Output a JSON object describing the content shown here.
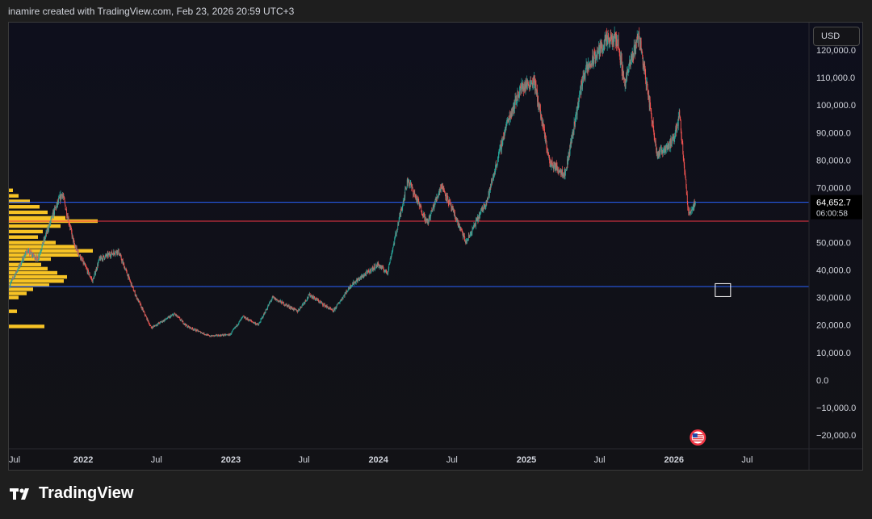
{
  "header": {
    "attribution": "inamire created with TradingView.com, Feb 23, 2026 20:59 UTC+3"
  },
  "toolbar": {
    "currency": "USD"
  },
  "footer": {
    "brand": "TradingView"
  },
  "colors": {
    "up": "#26a69a",
    "down": "#ef5350",
    "line_blue": "#2962ff",
    "line_red": "#f23645",
    "volume_profile": "#f7c325",
    "price_label_bg": "#000000",
    "axis_text": "#d1d4dc"
  },
  "chart_data": {
    "type": "candlestick",
    "series_name": "",
    "y_axis": {
      "range": [
        -25000,
        130000
      ],
      "ticks": [
        120000,
        110000,
        100000,
        90000,
        80000,
        70000,
        50000,
        40000,
        30000,
        20000,
        10000,
        0,
        -10000,
        -20000
      ],
      "tick_labels": [
        "120,000.0",
        "110,000.0",
        "100,000.0",
        "90,000.0",
        "80,000.0",
        "70,000.0",
        "50,000.0",
        "40,000.0",
        "30,000.0",
        "20,000.0",
        "10,000.0",
        "0.0",
        "−10,000.0",
        "−20,000.0"
      ]
    },
    "x_axis": {
      "range": [
        "2021-07-01",
        "2026-12-01"
      ],
      "ticks": [
        {
          "date": "2021-07-01",
          "label": "Jul",
          "bold": false
        },
        {
          "date": "2022-01-01",
          "label": "2022",
          "bold": true
        },
        {
          "date": "2022-07-01",
          "label": "Jul",
          "bold": false
        },
        {
          "date": "2023-01-01",
          "label": "2023",
          "bold": true
        },
        {
          "date": "2023-07-01",
          "label": "Jul",
          "bold": false
        },
        {
          "date": "2024-01-01",
          "label": "2024",
          "bold": true
        },
        {
          "date": "2024-07-01",
          "label": "Jul",
          "bold": false
        },
        {
          "date": "2025-01-01",
          "label": "2025",
          "bold": true
        },
        {
          "date": "2025-07-01",
          "label": "Jul",
          "bold": false
        },
        {
          "date": "2026-01-01",
          "label": "2026",
          "bold": true
        },
        {
          "date": "2026-07-01",
          "label": "Jul",
          "bold": false
        }
      ]
    },
    "price_path": [
      [
        "2021-07-01",
        34000
      ],
      [
        "2021-08-15",
        47000
      ],
      [
        "2021-09-10",
        44000
      ],
      [
        "2021-10-20",
        61000
      ],
      [
        "2021-11-10",
        68000
      ],
      [
        "2021-12-10",
        49000
      ],
      [
        "2022-01-24",
        36000
      ],
      [
        "2022-02-10",
        44000
      ],
      [
        "2022-03-28",
        47000
      ],
      [
        "2022-05-10",
        31000
      ],
      [
        "2022-06-18",
        19000
      ],
      [
        "2022-08-15",
        24000
      ],
      [
        "2022-09-15",
        19500
      ],
      [
        "2022-11-09",
        16000
      ],
      [
        "2022-12-30",
        16500
      ],
      [
        "2023-01-31",
        23000
      ],
      [
        "2023-03-10",
        20000
      ],
      [
        "2023-04-14",
        30000
      ],
      [
        "2023-06-15",
        25000
      ],
      [
        "2023-07-15",
        31000
      ],
      [
        "2023-09-11",
        25000
      ],
      [
        "2023-10-25",
        34500
      ],
      [
        "2023-12-31",
        42000
      ],
      [
        "2024-01-23",
        39000
      ],
      [
        "2024-03-14",
        73000
      ],
      [
        "2024-05-01",
        57000
      ],
      [
        "2024-06-05",
        71000
      ],
      [
        "2024-08-05",
        50000
      ],
      [
        "2024-09-27",
        66000
      ],
      [
        "2024-11-13",
        93000
      ],
      [
        "2024-12-17",
        106000
      ],
      [
        "2025-01-20",
        109000
      ],
      [
        "2025-02-28",
        79000
      ],
      [
        "2025-04-07",
        75000
      ],
      [
        "2025-05-22",
        111000
      ],
      [
        "2025-07-14",
        123000
      ],
      [
        "2025-08-14",
        124000
      ],
      [
        "2025-09-01",
        108000
      ],
      [
        "2025-10-06",
        126000
      ],
      [
        "2025-11-21",
        82000
      ],
      [
        "2025-12-31",
        87000
      ],
      [
        "2026-01-15",
        97000
      ],
      [
        "2026-02-06",
        60000
      ],
      [
        "2026-02-23",
        64652.7
      ]
    ],
    "current_price": {
      "value": 64652.7,
      "label": "64,652.7",
      "countdown": "06:00:58"
    },
    "horizontal_lines": [
      {
        "price": 64652.7,
        "color": "#2962ff"
      },
      {
        "price": 57800,
        "color": "#f23645"
      },
      {
        "price": 34000,
        "color": "#2962ff"
      }
    ],
    "annotation_box": {
      "date": "2026-05-01",
      "price": 33000
    },
    "event_marker": {
      "date": "2026-03-01",
      "type": "us-economic-event"
    },
    "volume_profile": {
      "side": "left",
      "bins": [
        [
          69000,
          5
        ],
        [
          67000,
          12
        ],
        [
          65000,
          26
        ],
        [
          63000,
          38
        ],
        [
          61000,
          48
        ],
        [
          59000,
          70
        ],
        [
          57800,
          110
        ],
        [
          56000,
          64
        ],
        [
          54000,
          42
        ],
        [
          52000,
          36
        ],
        [
          50000,
          58
        ],
        [
          48500,
          82
        ],
        [
          47000,
          104
        ],
        [
          45500,
          86
        ],
        [
          44000,
          52
        ],
        [
          42000,
          40
        ],
        [
          40500,
          48
        ],
        [
          39000,
          60
        ],
        [
          37500,
          72
        ],
        [
          36000,
          68
        ],
        [
          34500,
          50
        ],
        [
          33000,
          30
        ],
        [
          31500,
          22
        ],
        [
          30000,
          12
        ],
        [
          25000,
          10
        ],
        [
          19500,
          44
        ]
      ]
    }
  }
}
